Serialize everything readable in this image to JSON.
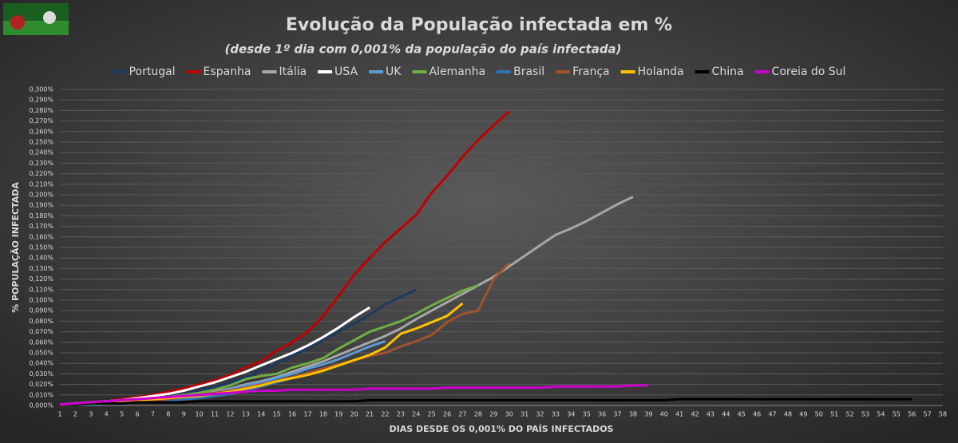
{
  "chart_data": {
    "type": "line",
    "title": "Evolução da População infectada em %",
    "subtitle": "(desde 1º dia com 0,001% da população do país infectada)",
    "y_label": "% POPULAÇÃO INFECTADA",
    "x_label": "DIAS DESDE OS 0,001% DO PAÍS INFECTADOS",
    "x": [
      1,
      2,
      3,
      4,
      5,
      6,
      7,
      8,
      9,
      10,
      11,
      12,
      13,
      14,
      15,
      16,
      17,
      18,
      19,
      20,
      21,
      22,
      23,
      24,
      25,
      26,
      27,
      28,
      29,
      30,
      31,
      32,
      33,
      34,
      35,
      36,
      37,
      38,
      39,
      40,
      41,
      42,
      43,
      44,
      45,
      46,
      47,
      48,
      49,
      50,
      51,
      52,
      53,
      54,
      55,
      56,
      57,
      58
    ],
    "xlim": [
      1,
      58
    ],
    "ylim": [
      0,
      0.3
    ],
    "yticks": [
      {
        "value": 0,
        "label": "0,000%"
      },
      {
        "value": 0.01,
        "label": "0,010%"
      },
      {
        "value": 0.02,
        "label": "0,020%"
      },
      {
        "value": 0.03,
        "label": "0,030%"
      },
      {
        "value": 0.04,
        "label": "0,040%"
      },
      {
        "value": 0.05,
        "label": "0,050%"
      },
      {
        "value": 0.06,
        "label": "0,060%"
      },
      {
        "value": 0.07,
        "label": "0,070%"
      },
      {
        "value": 0.08,
        "label": "0,080%"
      },
      {
        "value": 0.09,
        "label": "0,090%"
      },
      {
        "value": 0.1,
        "label": "0,100%"
      },
      {
        "value": 0.11,
        "label": "0,110%"
      },
      {
        "value": 0.12,
        "label": "0,120%"
      },
      {
        "value": 0.13,
        "label": "0,130%"
      },
      {
        "value": 0.14,
        "label": "0,140%"
      },
      {
        "value": 0.15,
        "label": "0,150%"
      },
      {
        "value": 0.16,
        "label": "0,160%"
      },
      {
        "value": 0.17,
        "label": "0,170%"
      },
      {
        "value": 0.18,
        "label": "0,180%"
      },
      {
        "value": 0.19,
        "label": "0,190%"
      },
      {
        "value": 0.2,
        "label": "0,200%"
      },
      {
        "value": 0.21,
        "label": "0,210%"
      },
      {
        "value": 0.22,
        "label": "0,220%"
      },
      {
        "value": 0.23,
        "label": "0,230%"
      },
      {
        "value": 0.24,
        "label": "0,240%"
      },
      {
        "value": 0.25,
        "label": "0,250%"
      },
      {
        "value": 0.26,
        "label": "0,260%"
      },
      {
        "value": 0.27,
        "label": "0,270%"
      },
      {
        "value": 0.28,
        "label": "0,280%"
      },
      {
        "value": 0.29,
        "label": "0,290%"
      },
      {
        "value": 0.3,
        "label": "0,300%"
      }
    ],
    "grid": true,
    "legend": "top",
    "series": [
      {
        "name": "Portugal",
        "color": "#1f3864",
        "values": [
          0.001,
          0.002,
          0.003,
          0.004,
          0.005,
          0.006,
          0.007,
          0.009,
          0.011,
          0.014,
          0.018,
          0.022,
          0.027,
          0.033,
          0.04,
          0.047,
          0.054,
          0.062,
          0.07,
          0.078,
          0.086,
          0.096,
          0.103,
          0.11,
          null,
          null,
          null,
          null,
          null,
          null,
          null,
          null,
          null,
          null,
          null,
          null,
          null,
          null,
          null,
          null,
          null,
          null,
          null,
          null,
          null,
          null,
          null,
          null,
          null,
          null,
          null,
          null,
          null,
          null,
          null,
          null,
          null,
          null
        ]
      },
      {
        "name": "Espanha",
        "color": "#c00000",
        "values": [
          0.001,
          0.002,
          0.003,
          0.004,
          0.006,
          0.008,
          0.01,
          0.013,
          0.016,
          0.02,
          0.024,
          0.029,
          0.036,
          0.042,
          0.052,
          0.06,
          0.07,
          0.085,
          0.104,
          0.124,
          0.14,
          0.155,
          0.168,
          0.181,
          0.202,
          0.218,
          0.236,
          0.252,
          0.266,
          0.279,
          null,
          null,
          null,
          null,
          null,
          null,
          null,
          null,
          null,
          null,
          null,
          null,
          null,
          null,
          null,
          null,
          null,
          null,
          null,
          null,
          null,
          null,
          null,
          null,
          null,
          null,
          null,
          null
        ]
      },
      {
        "name": "Itália",
        "color": "#a6a6a6",
        "values": [
          0.001,
          0.001,
          0.002,
          0.002,
          0.003,
          0.004,
          0.005,
          0.006,
          0.008,
          0.01,
          0.013,
          0.016,
          0.02,
          0.023,
          0.027,
          0.032,
          0.037,
          0.042,
          0.048,
          0.054,
          0.06,
          0.066,
          0.073,
          0.082,
          0.09,
          0.098,
          0.106,
          0.114,
          0.122,
          0.132,
          0.142,
          0.152,
          0.162,
          0.168,
          0.175,
          0.183,
          0.191,
          0.198,
          null,
          null,
          null,
          null,
          null,
          null,
          null,
          null,
          null,
          null,
          null,
          null,
          null,
          null,
          null,
          null,
          null,
          null,
          null,
          null
        ]
      },
      {
        "name": "USA",
        "color": "#ffffff",
        "values": [
          0.001,
          0.002,
          0.003,
          0.004,
          0.005,
          0.007,
          0.009,
          0.011,
          0.014,
          0.018,
          0.022,
          0.027,
          0.032,
          0.038,
          0.044,
          0.05,
          0.057,
          0.065,
          0.074,
          0.084,
          0.093,
          null,
          null,
          null,
          null,
          null,
          null,
          null,
          null,
          null,
          null,
          null,
          null,
          null,
          null,
          null,
          null,
          null,
          null,
          null,
          null,
          null,
          null,
          null,
          null,
          null,
          null,
          null,
          null,
          null,
          null,
          null,
          null,
          null,
          null,
          null,
          null,
          null
        ]
      },
      {
        "name": "UK",
        "color": "#5b9bd5",
        "values": [
          0.001,
          0.001,
          0.002,
          0.002,
          0.003,
          0.004,
          0.005,
          0.006,
          0.008,
          0.01,
          0.012,
          0.015,
          0.019,
          0.022,
          0.026,
          0.03,
          0.035,
          0.039,
          0.044,
          0.05,
          0.056,
          0.061,
          null,
          null,
          null,
          null,
          null,
          null,
          null,
          null,
          null,
          null,
          null,
          null,
          null,
          null,
          null,
          null,
          null,
          null,
          null,
          null,
          null,
          null,
          null,
          null,
          null,
          null,
          null,
          null,
          null,
          null,
          null,
          null,
          null,
          null,
          null,
          null
        ]
      },
      {
        "name": "Alemanha",
        "color": "#70ad47",
        "values": [
          0.001,
          0.001,
          0.002,
          0.003,
          0.004,
          0.005,
          0.006,
          0.008,
          0.01,
          0.012,
          0.015,
          0.019,
          0.025,
          0.028,
          0.03,
          0.036,
          0.04,
          0.045,
          0.054,
          0.062,
          0.07,
          0.075,
          0.08,
          0.087,
          0.095,
          0.102,
          0.109,
          0.114,
          null,
          null,
          null,
          null,
          null,
          null,
          null,
          null,
          null,
          null,
          null,
          null,
          null,
          null,
          null,
          null,
          null,
          null,
          null,
          null,
          null,
          null,
          null,
          null,
          null,
          null,
          null,
          null,
          null,
          null
        ]
      },
      {
        "name": "Brasil",
        "color": "#2e75b6",
        "values": [
          0.001,
          0.001,
          0.001,
          0.002,
          0.002,
          0.003,
          0.004,
          0.005,
          0.006,
          0.007,
          0.009,
          0.011,
          0.014,
          0.018,
          0.022,
          0.026,
          0.031,
          null,
          null,
          null,
          null,
          null,
          null,
          null,
          null,
          null,
          null,
          null,
          null,
          null,
          null,
          null,
          null,
          null,
          null,
          null,
          null,
          null,
          null,
          null,
          null,
          null,
          null,
          null,
          null,
          null,
          null,
          null,
          null,
          null,
          null,
          null,
          null,
          null,
          null,
          null,
          null,
          null
        ]
      },
      {
        "name": "França",
        "color": "#a0522d",
        "values": [
          0.001,
          0.001,
          0.002,
          0.002,
          0.003,
          0.004,
          0.005,
          0.006,
          0.008,
          0.01,
          0.012,
          0.014,
          0.017,
          0.02,
          0.023,
          0.027,
          0.031,
          0.035,
          0.039,
          0.043,
          0.047,
          0.05,
          0.056,
          0.061,
          0.067,
          0.079,
          0.087,
          0.09,
          0.12,
          0.135,
          null,
          null,
          null,
          null,
          null,
          null,
          null,
          null,
          null,
          null,
          null,
          null,
          null,
          null,
          null,
          null,
          null,
          null,
          null,
          null,
          null,
          null,
          null,
          null,
          null,
          null,
          null,
          null
        ]
      },
      {
        "name": "Holanda",
        "color": "#ffc000",
        "values": [
          0.001,
          0.001,
          0.002,
          0.003,
          0.004,
          0.005,
          0.006,
          0.007,
          0.008,
          0.009,
          0.011,
          0.013,
          0.016,
          0.019,
          0.023,
          0.026,
          0.029,
          0.033,
          0.038,
          0.043,
          0.048,
          0.055,
          0.068,
          0.073,
          0.079,
          0.085,
          0.097,
          null,
          null,
          null,
          null,
          null,
          null,
          null,
          null,
          null,
          null,
          null,
          null,
          null,
          null,
          null,
          null,
          null,
          null,
          null,
          null,
          null,
          null,
          null,
          null,
          null,
          null,
          null,
          null,
          null,
          null,
          null
        ]
      },
      {
        "name": "China",
        "color": "#000000",
        "values": [
          0.001,
          0.001,
          0.002,
          0.002,
          0.002,
          0.003,
          0.003,
          0.003,
          0.003,
          0.004,
          0.004,
          0.004,
          0.004,
          0.004,
          0.004,
          0.004,
          0.004,
          0.004,
          0.004,
          0.004,
          0.005,
          0.005,
          0.005,
          0.005,
          0.005,
          0.005,
          0.005,
          0.005,
          0.005,
          0.005,
          0.005,
          0.005,
          0.005,
          0.005,
          0.005,
          0.005,
          0.005,
          0.005,
          0.005,
          0.005,
          0.006,
          0.006,
          0.006,
          0.006,
          0.006,
          0.006,
          0.006,
          0.006,
          0.006,
          0.006,
          0.006,
          0.006,
          0.006,
          0.006,
          0.006,
          0.006,
          null,
          null
        ]
      },
      {
        "name": "Coreia do Sul",
        "color": "#cc00cc",
        "values": [
          0.001,
          0.002,
          0.003,
          0.004,
          0.005,
          0.006,
          0.007,
          0.008,
          0.009,
          0.01,
          0.011,
          0.012,
          0.013,
          0.014,
          0.014,
          0.015,
          0.015,
          0.015,
          0.015,
          0.015,
          0.016,
          0.016,
          0.016,
          0.016,
          0.016,
          0.017,
          0.017,
          0.017,
          0.017,
          0.017,
          0.017,
          0.017,
          0.018,
          0.018,
          0.018,
          0.018,
          0.018,
          0.019,
          0.019,
          null,
          null,
          null,
          null,
          null,
          null,
          null,
          null,
          null,
          null,
          null,
          null,
          null,
          null,
          null,
          null,
          null,
          null,
          null
        ]
      }
    ]
  }
}
